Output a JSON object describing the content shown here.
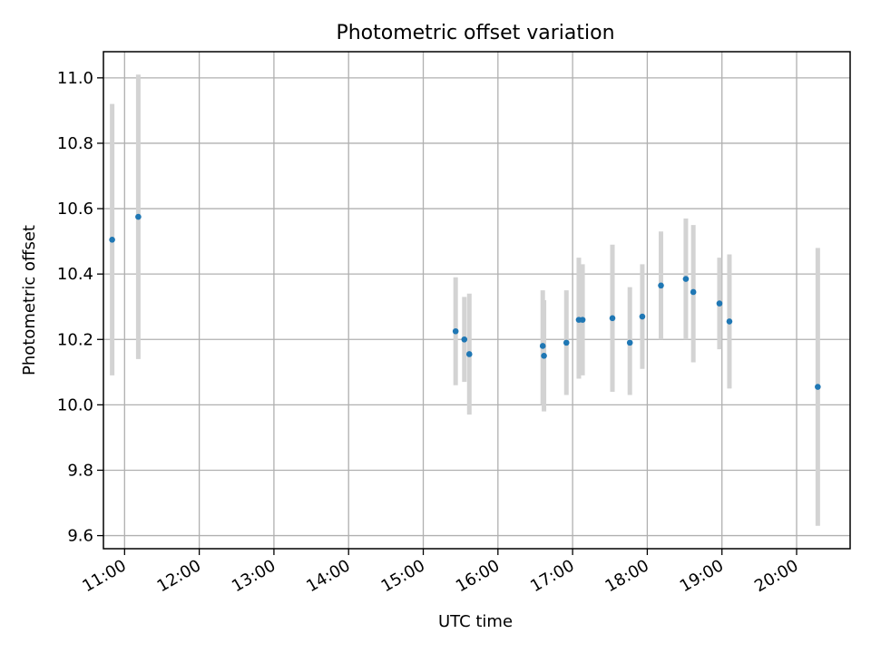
{
  "chart_data": {
    "type": "scatter",
    "title": "Photometric offset variation",
    "xlabel": "UTC time",
    "ylabel": "Photometric offset",
    "xlim": [
      "10:43",
      "20:43"
    ],
    "ylim": [
      9.56,
      11.08
    ],
    "xticks": [
      "11:00",
      "12:00",
      "13:00",
      "14:00",
      "15:00",
      "16:00",
      "17:00",
      "18:00",
      "19:00",
      "20:00"
    ],
    "yticks": [
      "9.6",
      "9.8",
      "10.0",
      "10.2",
      "10.4",
      "10.6",
      "10.8",
      "11.0"
    ],
    "grid": true,
    "colors": {
      "point": "#1f77b4",
      "errorbar": "#d3d3d3",
      "grid": "#b0b0b0"
    },
    "series": [
      {
        "points": [
          {
            "time": "10:50",
            "y": 10.505,
            "low": 10.09,
            "high": 10.92
          },
          {
            "time": "11:11",
            "y": 10.575,
            "low": 10.14,
            "high": 11.01
          },
          {
            "time": "15:26",
            "y": 10.225,
            "low": 10.06,
            "high": 10.39
          },
          {
            "time": "15:33",
            "y": 10.2,
            "low": 10.07,
            "high": 10.33
          },
          {
            "time": "15:37",
            "y": 10.155,
            "low": 9.97,
            "high": 10.34
          },
          {
            "time": "16:36",
            "y": 10.18,
            "low": 10.0,
            "high": 10.35
          },
          {
            "time": "16:37",
            "y": 10.15,
            "low": 9.98,
            "high": 10.32
          },
          {
            "time": "16:55",
            "y": 10.19,
            "low": 10.03,
            "high": 10.35
          },
          {
            "time": "17:05",
            "y": 10.26,
            "low": 10.08,
            "high": 10.45
          },
          {
            "time": "17:08",
            "y": 10.26,
            "low": 10.09,
            "high": 10.43
          },
          {
            "time": "17:32",
            "y": 10.265,
            "low": 10.04,
            "high": 10.49
          },
          {
            "time": "17:46",
            "y": 10.19,
            "low": 10.03,
            "high": 10.36
          },
          {
            "time": "17:56",
            "y": 10.27,
            "low": 10.11,
            "high": 10.43
          },
          {
            "time": "18:11",
            "y": 10.365,
            "low": 10.2,
            "high": 10.53
          },
          {
            "time": "18:31",
            "y": 10.385,
            "low": 10.2,
            "high": 10.57
          },
          {
            "time": "18:37",
            "y": 10.345,
            "low": 10.13,
            "high": 10.55
          },
          {
            "time": "18:58",
            "y": 10.31,
            "low": 10.17,
            "high": 10.45
          },
          {
            "time": "19:06",
            "y": 10.255,
            "low": 10.05,
            "high": 10.46
          },
          {
            "time": "20:17",
            "y": 10.055,
            "low": 9.63,
            "high": 10.48
          }
        ]
      }
    ]
  }
}
